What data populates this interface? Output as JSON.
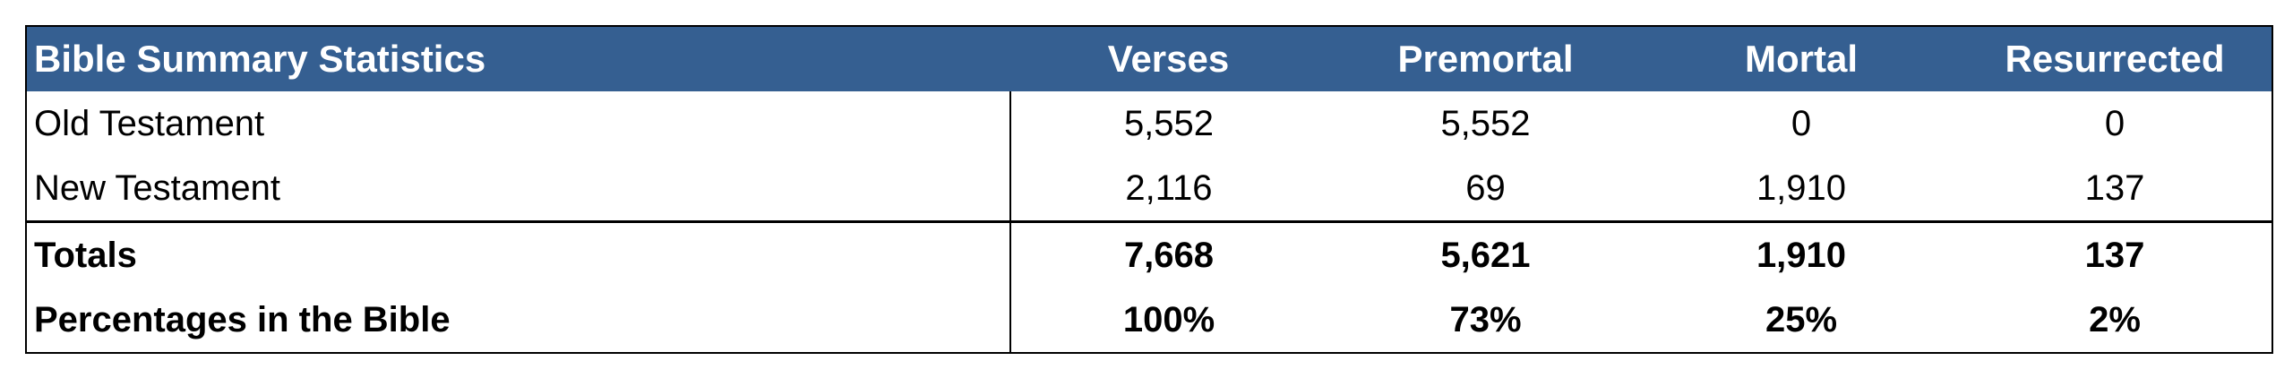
{
  "table": {
    "title": "Bible Summary Statistics",
    "columns": [
      "Verses",
      "Premortal",
      "Mortal",
      "Resurrected"
    ],
    "rows": [
      [
        "Old Testament",
        "5,552",
        "5,552",
        "0",
        "0"
      ],
      [
        "New Testament",
        "2,116",
        "69",
        "1,910",
        "137"
      ]
    ],
    "summary_rows": [
      [
        "Totals",
        "7,668",
        "5,621",
        "1,910",
        "137"
      ],
      [
        "Percentages in the Bible",
        "100%",
        "73%",
        "25%",
        "2%"
      ]
    ]
  }
}
